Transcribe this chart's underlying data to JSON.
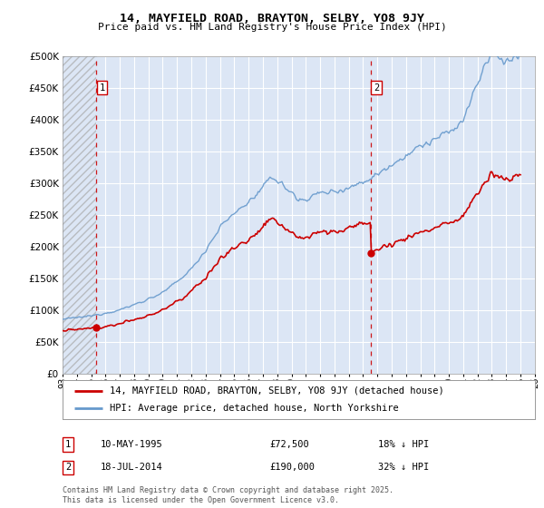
{
  "title": "14, MAYFIELD ROAD, BRAYTON, SELBY, YO8 9JY",
  "subtitle": "Price paid vs. HM Land Registry's House Price Index (HPI)",
  "ylim": [
    0,
    500000
  ],
  "yticks": [
    0,
    50000,
    100000,
    150000,
    200000,
    250000,
    300000,
    350000,
    400000,
    450000,
    500000
  ],
  "ytick_labels": [
    "£0",
    "£50K",
    "£100K",
    "£150K",
    "£200K",
    "£250K",
    "£300K",
    "£350K",
    "£400K",
    "£450K",
    "£500K"
  ],
  "background_color": "#ffffff",
  "plot_bg_color": "#dce6f5",
  "grid_color": "#ffffff",
  "hpi_color": "#6699cc",
  "price_color": "#cc0000",
  "dashed_line_color": "#cc0000",
  "marker1_date": 1995.36,
  "marker1_price": 72500,
  "marker1_label": "1",
  "marker2_date": 2014.54,
  "marker2_price": 190000,
  "marker2_label": "2",
  "legend_line1": "14, MAYFIELD ROAD, BRAYTON, SELBY, YO8 9JY (detached house)",
  "legend_line2": "HPI: Average price, detached house, North Yorkshire",
  "note1_label": "1",
  "note1_date": "10-MAY-1995",
  "note1_price": "£72,500",
  "note1_pct": "18% ↓ HPI",
  "note2_label": "2",
  "note2_date": "18-JUL-2014",
  "note2_price": "£190,000",
  "note2_pct": "32% ↓ HPI",
  "copyright": "Contains HM Land Registry data © Crown copyright and database right 2025.\nThis data is licensed under the Open Government Licence v3.0.",
  "xmin": 1993,
  "xmax": 2026
}
